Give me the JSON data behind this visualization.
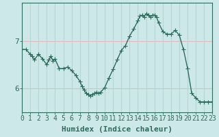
{
  "x": [
    0,
    0.5,
    1,
    1.25,
    1.5,
    2,
    2.5,
    3,
    3.25,
    3.5,
    3.75,
    4,
    4.5,
    5,
    5.5,
    6,
    6.5,
    7,
    7.25,
    7.5,
    7.75,
    8,
    8.25,
    8.5,
    8.75,
    9,
    9.25,
    9.5,
    10,
    10.5,
    11,
    11.5,
    12,
    12.5,
    13,
    13.5,
    14,
    14.25,
    14.5,
    14.75,
    15,
    15.25,
    15.5,
    15.75,
    16,
    16.25,
    16.5,
    17,
    17.5,
    18,
    18.5,
    19,
    19.5,
    20,
    20.5,
    21,
    21.5,
    22,
    22.5,
    23
  ],
  "y": [
    6.82,
    6.82,
    6.72,
    6.68,
    6.6,
    6.72,
    6.62,
    6.5,
    6.6,
    6.68,
    6.58,
    6.62,
    6.42,
    6.42,
    6.45,
    6.38,
    6.28,
    6.15,
    6.05,
    5.97,
    5.9,
    5.88,
    5.85,
    5.88,
    5.9,
    5.92,
    5.9,
    5.92,
    6.02,
    6.22,
    6.4,
    6.6,
    6.8,
    6.9,
    7.1,
    7.25,
    7.42,
    7.52,
    7.54,
    7.5,
    7.57,
    7.54,
    7.5,
    7.54,
    7.54,
    7.5,
    7.38,
    7.2,
    7.14,
    7.14,
    7.22,
    7.12,
    6.82,
    6.42,
    5.9,
    5.8,
    5.72,
    5.72,
    5.72,
    5.72
  ],
  "xlabel": "Humidex (Indice chaleur)",
  "xlim": [
    0,
    23
  ],
  "ylim": [
    5.5,
    7.8
  ],
  "yticks": [
    6,
    7
  ],
  "xticks": [
    0,
    1,
    2,
    3,
    4,
    5,
    6,
    7,
    8,
    9,
    10,
    11,
    12,
    13,
    14,
    15,
    16,
    17,
    18,
    19,
    20,
    21,
    22,
    23
  ],
  "line_color": "#2d6b5e",
  "bg_color": "#cce8e8",
  "grid_h_color": "#e8b8b8",
  "grid_v_color": "#b8d4d4",
  "marker_size": 2.0,
  "linewidth": 1.0,
  "xlabel_fontsize": 8,
  "tick_fontsize": 7
}
